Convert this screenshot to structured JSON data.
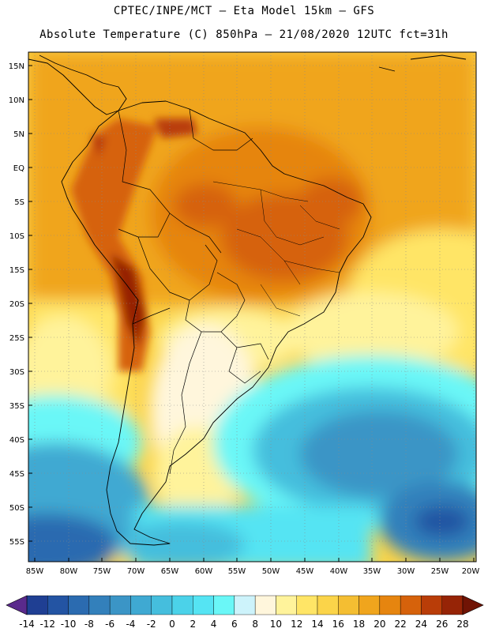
{
  "title": {
    "line1": "CPTEC/INPE/MCT –  Eta Model 15km – GFS",
    "line2": "Absolute Temperature (C) 850hPa – 21/08/2020 12UTC fct=31h"
  },
  "axes": {
    "lat_labels": [
      "15N",
      "10N",
      "5N",
      "EQ",
      "5S",
      "10S",
      "15S",
      "20S",
      "25S",
      "30S",
      "35S",
      "40S",
      "45S",
      "50S",
      "55S"
    ],
    "lat_values": [
      15,
      10,
      5,
      0,
      -5,
      -10,
      -15,
      -20,
      -25,
      -30,
      -35,
      -40,
      -45,
      -50,
      -55
    ],
    "lon_labels": [
      "85W",
      "80W",
      "75W",
      "70W",
      "65W",
      "60W",
      "55W",
      "50W",
      "45W",
      "40W",
      "35W",
      "30W",
      "25W",
      "20W"
    ],
    "lon_values": [
      -85,
      -80,
      -75,
      -70,
      -65,
      -60,
      -55,
      -50,
      -45,
      -40,
      -35,
      -30,
      -25,
      -20
    ],
    "lon_range": [
      -86,
      -19.5
    ],
    "lat_range": [
      -58,
      17
    ]
  },
  "colorbar": {
    "labels": [
      "-14",
      "-12",
      "-10",
      "-8",
      "-6",
      "-4",
      "-2",
      "0",
      "2",
      "4",
      "6",
      "8",
      "10",
      "12",
      "14",
      "16",
      "18",
      "20",
      "22",
      "24",
      "26",
      "28"
    ],
    "colors": [
      "#5a2a8c",
      "#1f3f93",
      "#2354a3",
      "#2b6bb0",
      "#3380bb",
      "#3b95c6",
      "#3fa9d2",
      "#45bedd",
      "#4bd2e9",
      "#55e4f3",
      "#6af7f7",
      "#cdf3fb",
      "#fff6dc",
      "#fff39b",
      "#ffe566",
      "#fbd449",
      "#f4be32",
      "#f0a51d",
      "#e6850f",
      "#d6620b",
      "#b93d08",
      "#962406",
      "#701405"
    ]
  },
  "legend_icons": [
    "arrow-left-icon",
    "arrow-right-icon"
  ]
}
